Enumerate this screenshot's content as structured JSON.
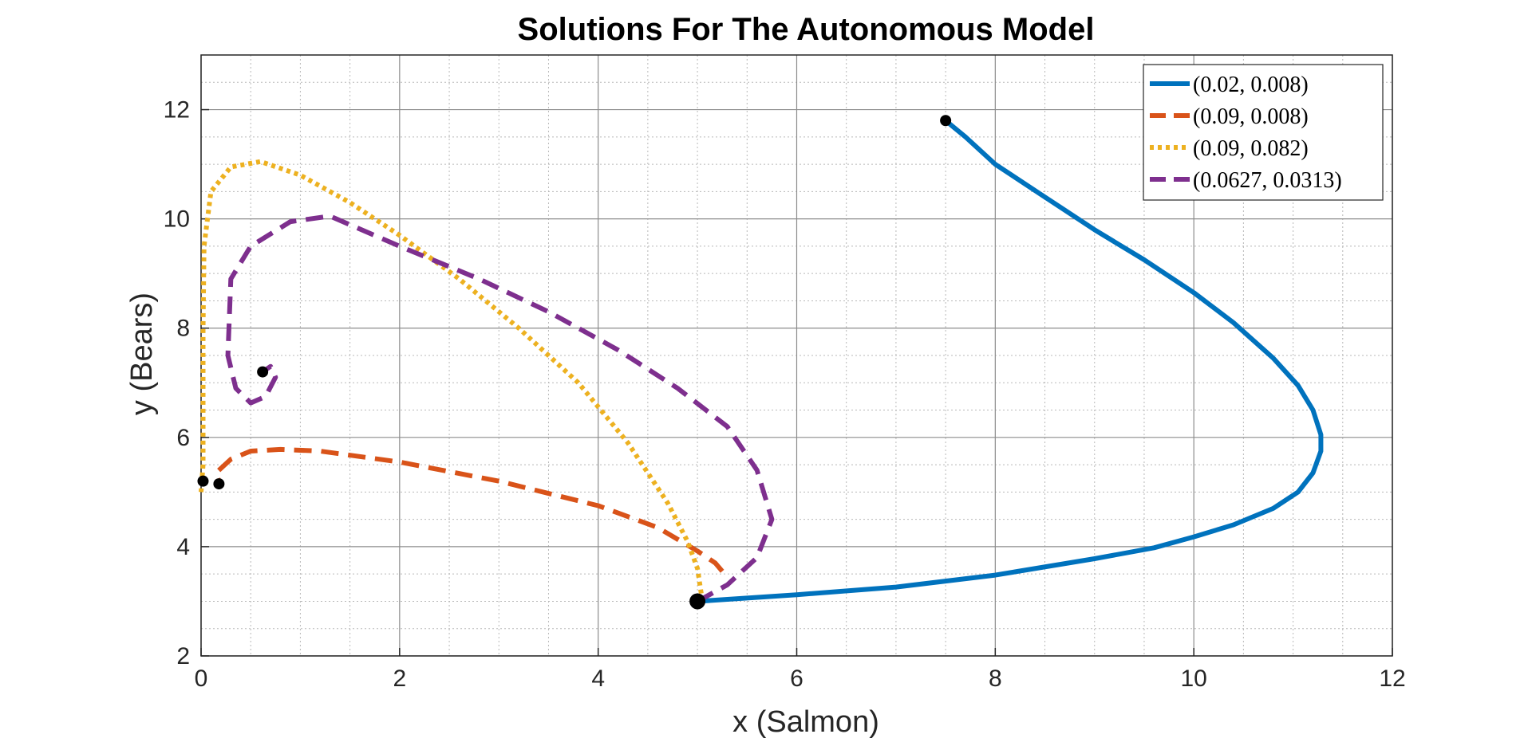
{
  "chart_data": {
    "type": "line",
    "title": "Solutions For The Autonomous Model",
    "xlabel": "x (Salmon)",
    "ylabel": "y (Bears)",
    "xlim": [
      0,
      12
    ],
    "ylim": [
      2,
      13
    ],
    "xticks": [
      0,
      2,
      4,
      6,
      8,
      10,
      12
    ],
    "yticks": [
      2,
      4,
      6,
      8,
      10,
      12
    ],
    "xtick_labels": [
      "0",
      "2",
      "4",
      "6",
      "8",
      "10",
      "12"
    ],
    "ytick_labels": [
      "2",
      "4",
      "6",
      "8",
      "10",
      "12"
    ],
    "grid": "major and minor",
    "legend_location": "top-right",
    "series": [
      {
        "name": "(0.02,  0.008)",
        "color": "#0072BD",
        "style": "solid",
        "points": [
          [
            5.0,
            3.0
          ],
          [
            6.0,
            3.12
          ],
          [
            7.0,
            3.26
          ],
          [
            8.0,
            3.48
          ],
          [
            9.0,
            3.78
          ],
          [
            9.6,
            3.98
          ],
          [
            10.0,
            4.18
          ],
          [
            10.4,
            4.4
          ],
          [
            10.8,
            4.7
          ],
          [
            11.05,
            5.0
          ],
          [
            11.2,
            5.35
          ],
          [
            11.28,
            5.75
          ],
          [
            11.28,
            6.05
          ],
          [
            11.2,
            6.5
          ],
          [
            11.05,
            6.95
          ],
          [
            10.8,
            7.45
          ],
          [
            10.4,
            8.1
          ],
          [
            10.0,
            8.65
          ],
          [
            9.5,
            9.25
          ],
          [
            9.0,
            9.8
          ],
          [
            8.5,
            10.4
          ],
          [
            8.0,
            11.0
          ],
          [
            7.7,
            11.5
          ],
          [
            7.5,
            11.8
          ]
        ],
        "markers": [
          [
            7.5,
            11.8
          ]
        ]
      },
      {
        "name": "(0.09,  0.008)",
        "color": "#D95319",
        "style": "dashed",
        "points": [
          [
            5.25,
            3.55
          ],
          [
            5.18,
            3.7
          ],
          [
            5.0,
            3.92
          ],
          [
            4.6,
            4.35
          ],
          [
            4.0,
            4.75
          ],
          [
            3.0,
            5.2
          ],
          [
            2.0,
            5.55
          ],
          [
            1.2,
            5.75
          ],
          [
            0.8,
            5.78
          ],
          [
            0.5,
            5.75
          ],
          [
            0.3,
            5.6
          ],
          [
            0.15,
            5.35
          ],
          [
            0.18,
            5.2
          ]
        ],
        "markers": [
          [
            0.18,
            5.15
          ]
        ]
      },
      {
        "name": "(0.09,  0.082)",
        "color": "#EDB120",
        "style": "dotted",
        "points": [
          [
            5.05,
            3.0
          ],
          [
            5.0,
            3.6
          ],
          [
            4.9,
            4.1
          ],
          [
            4.7,
            4.8
          ],
          [
            4.3,
            5.9
          ],
          [
            3.8,
            7.0
          ],
          [
            3.2,
            8.0
          ],
          [
            2.6,
            8.9
          ],
          [
            2.0,
            9.7
          ],
          [
            1.5,
            10.3
          ],
          [
            1.0,
            10.8
          ],
          [
            0.6,
            11.05
          ],
          [
            0.3,
            10.95
          ],
          [
            0.1,
            10.5
          ],
          [
            0.03,
            9.5
          ],
          [
            0.02,
            8.0
          ],
          [
            0.02,
            6.5
          ],
          [
            0.02,
            5.5
          ],
          [
            0.0,
            5.0
          ]
        ],
        "markers": [
          [
            0.02,
            5.2
          ]
        ]
      },
      {
        "name": "(0.0627,  0.0313)",
        "color": "#7E2F8E",
        "style": "dashed",
        "points": [
          [
            5.0,
            3.0
          ],
          [
            5.3,
            3.3
          ],
          [
            5.6,
            3.8
          ],
          [
            5.75,
            4.5
          ],
          [
            5.6,
            5.4
          ],
          [
            5.3,
            6.2
          ],
          [
            4.8,
            6.9
          ],
          [
            4.2,
            7.6
          ],
          [
            3.5,
            8.3
          ],
          [
            2.8,
            8.9
          ],
          [
            2.0,
            9.5
          ],
          [
            1.3,
            10.05
          ],
          [
            0.9,
            9.95
          ],
          [
            0.5,
            9.5
          ],
          [
            0.3,
            8.9
          ],
          [
            0.27,
            7.5
          ],
          [
            0.35,
            6.9
          ],
          [
            0.5,
            6.63
          ],
          [
            0.65,
            6.75
          ],
          [
            0.75,
            7.1
          ],
          [
            0.7,
            7.3
          ],
          [
            0.62,
            7.2
          ]
        ],
        "markers": [
          [
            0.62,
            7.2
          ]
        ]
      }
    ],
    "common_start": [
      5,
      3
    ]
  }
}
